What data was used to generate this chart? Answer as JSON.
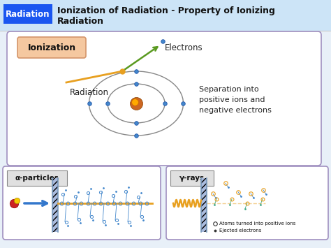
{
  "title_line1": "Ionization of Radiation - Property of Ionizing",
  "title_line2": "Radiation",
  "tag": "Radiation",
  "tag_bg": "#1a56f0",
  "tag_color": "#ffffff",
  "header_bg_top": "#cce4f7",
  "header_bg_bot": "#e8f4fd",
  "main_bg": "#e8f0f8",
  "ionization_label": "Ionization",
  "ionization_label_bg": "#f5c8a0",
  "ionization_label_edge": "#d4956a",
  "electrons_label": "Electrons",
  "radiation_label": "Radiation",
  "separation_label": "Separation into\npositive ions and\nnegative electrons",
  "alpha_label": "α-particles",
  "gamma_label": "γ-rays",
  "legend_atoms": "Atoms turned into positive ions",
  "legend_electrons": "Ejected electrons",
  "box_border": "#a090c0",
  "box_bg": "#ffffff",
  "electron_color": "#4488cc",
  "nucleus_color_outer": "#cc6600",
  "nucleus_color_inner": "#ffaa00",
  "orbit_color": "#888888",
  "radiation_line_color": "#e8a020",
  "electron_arrow_color": "#5a9a20",
  "alpha_line_color": "#e8a020",
  "gamma_wave_color": "#e8a020",
  "alpha_particle_red": "#cc2222",
  "alpha_particle_yel": "#f5c800",
  "arrow_color": "#3377cc",
  "barrier_color": "#aabbdd",
  "barrier_edge": "#7799bb",
  "scatter_orange": "#e8a020",
  "scatter_blue": "#4488cc",
  "scatter_green": "#44aa88"
}
